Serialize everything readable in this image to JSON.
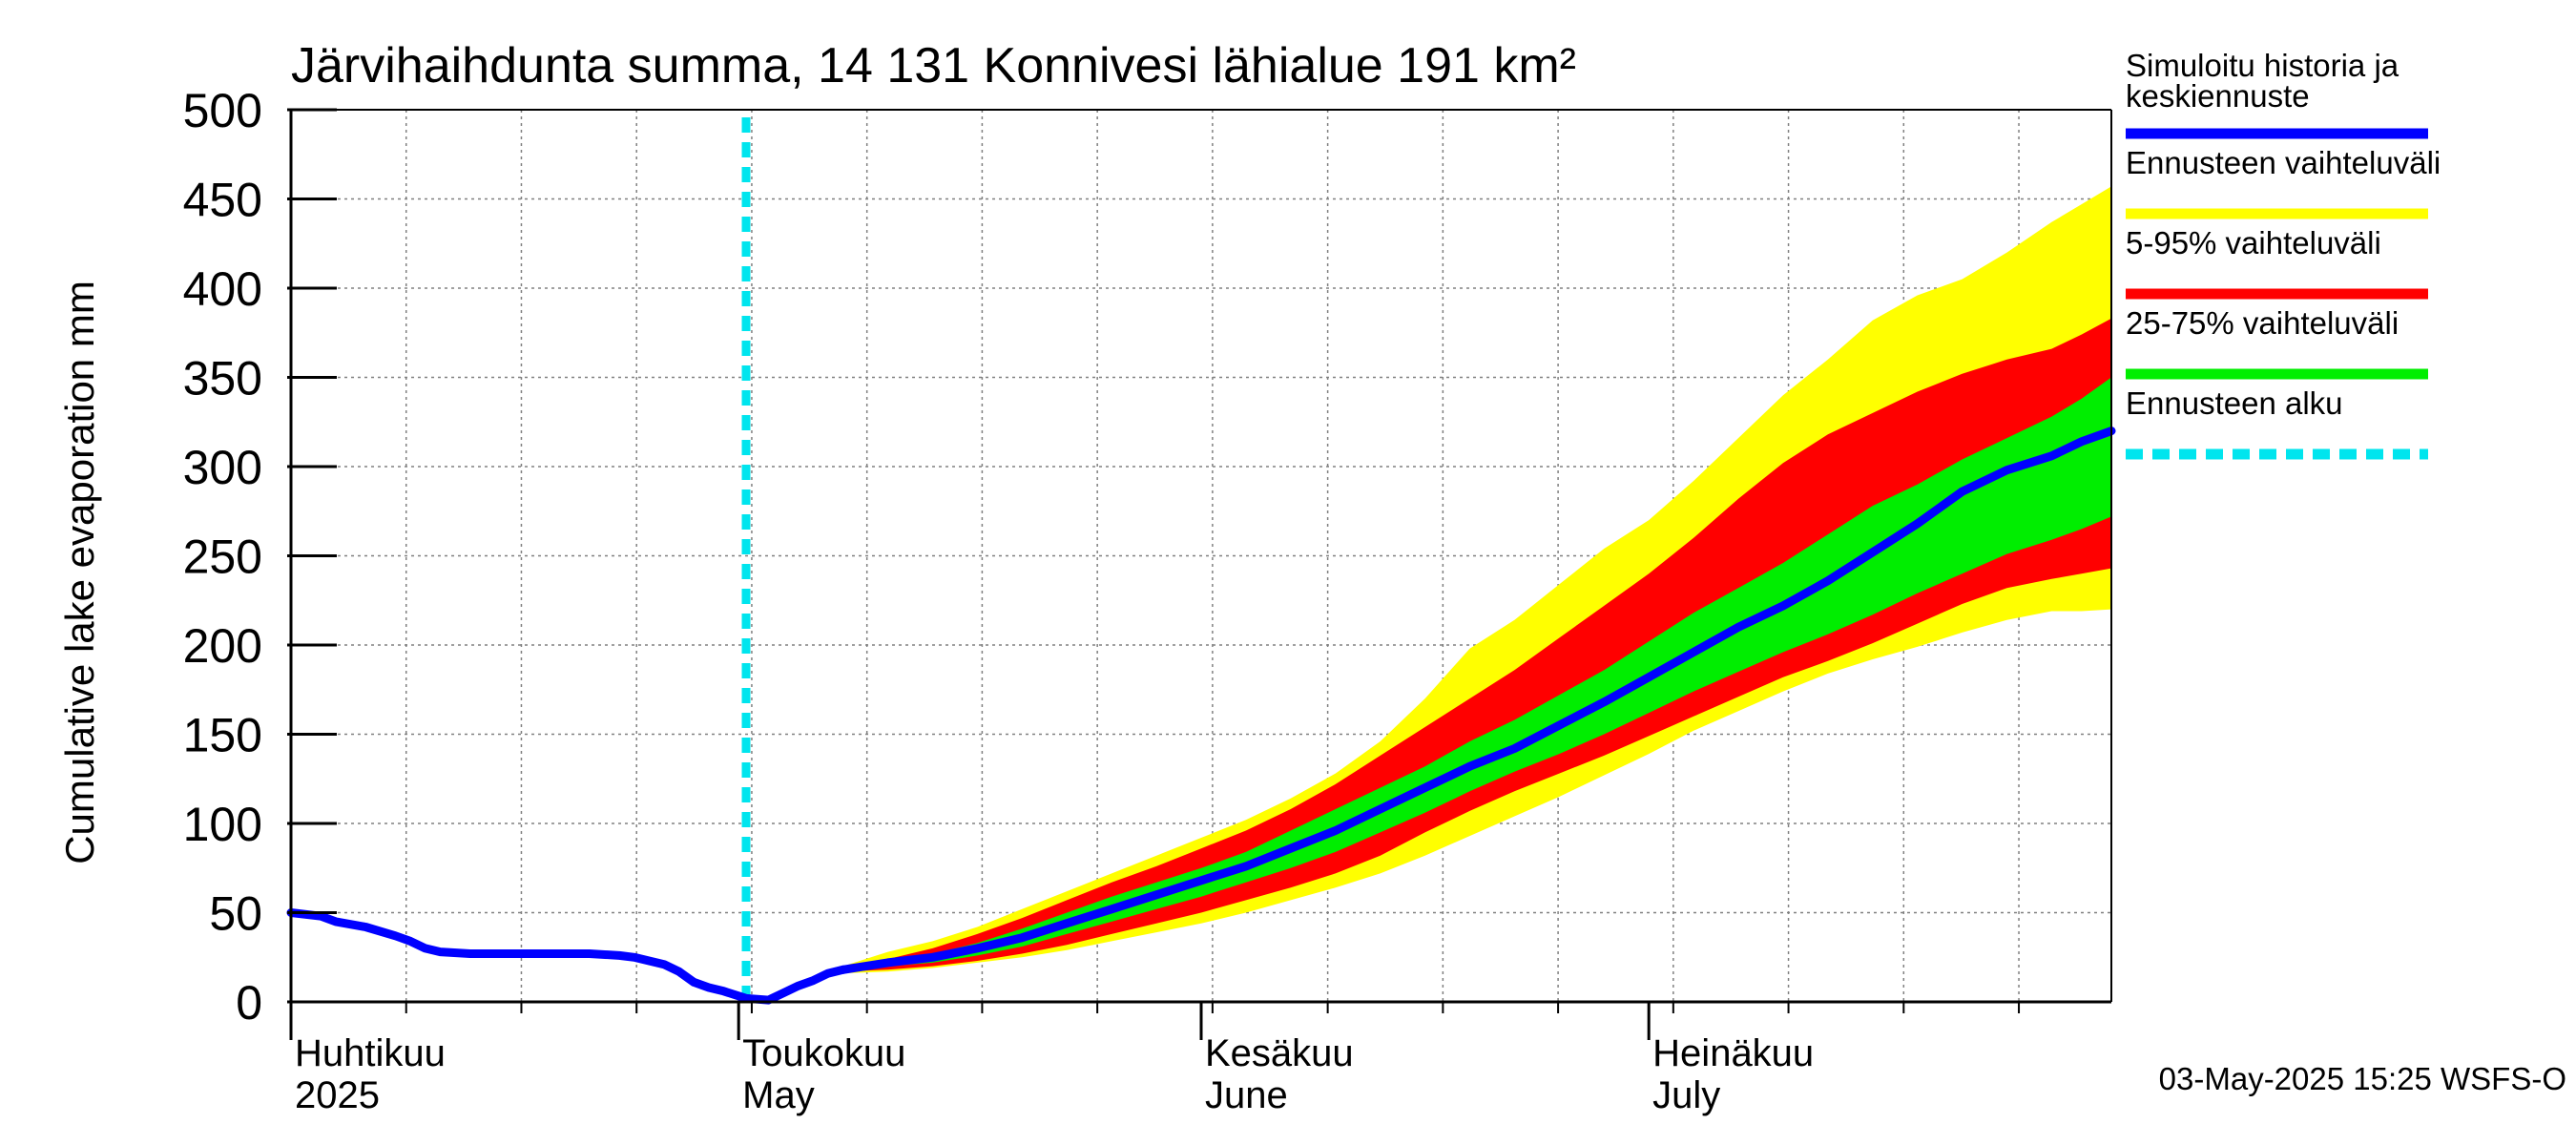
{
  "chart_data": {
    "type": "area",
    "title": "Järvihaihdunta summa, 14 131 Konnivesi lähialue 191 km²",
    "ylabel": "Cumulative lake evaporation   mm",
    "xlabel": "",
    "ylim": [
      0,
      500
    ],
    "yticks": [
      "0",
      "50",
      "100",
      "150",
      "200",
      "250",
      "300",
      "350",
      "400",
      "450",
      "500"
    ],
    "xlim_days": [
      0,
      122
    ],
    "month_labels": [
      {
        "fi": "Huhtikuu",
        "en": "2025",
        "day": 0
      },
      {
        "fi": "Toukokuu",
        "en": "May",
        "day": 30
      },
      {
        "fi": "Kesäkuu",
        "en": "June",
        "day": 61
      },
      {
        "fi": "Heinäkuu",
        "en": "July",
        "day": 91
      }
    ],
    "forecast_start_day": 30.5,
    "history": {
      "name": "Simuloitu historia ja keskiennuste",
      "x": [
        0,
        2,
        3,
        5,
        7,
        8,
        9,
        10,
        12,
        14,
        16,
        18,
        20,
        22,
        23,
        24,
        25,
        26,
        27,
        28,
        29,
        30.5,
        32,
        33,
        34,
        35,
        36,
        37
      ],
      "y": [
        50,
        48,
        45,
        42,
        37,
        34,
        30,
        28,
        27,
        27,
        27,
        27,
        27,
        26,
        25,
        23,
        21,
        17,
        11,
        8,
        6,
        2,
        1,
        5,
        9,
        12,
        16,
        18
      ]
    },
    "forecast_x": [
      37,
      40,
      43,
      46,
      49,
      52,
      55,
      58,
      61,
      64,
      67,
      70,
      73,
      76,
      79,
      82,
      85,
      88,
      91,
      94,
      97,
      100,
      103,
      106,
      109,
      112,
      115,
      118,
      120,
      122
    ],
    "median": [
      18,
      22,
      25,
      30,
      36,
      44,
      52,
      60,
      68,
      76,
      86,
      96,
      108,
      120,
      132,
      142,
      155,
      168,
      182,
      196,
      210,
      222,
      236,
      252,
      268,
      286,
      298,
      306,
      314,
      320
    ],
    "bands": [
      {
        "name": "Ennusteen vaihteluväli",
        "color": "#ffff00",
        "lower": [
          16,
          17,
          19,
          22,
          25,
          29,
          34,
          39,
          44,
          50,
          57,
          64,
          72,
          82,
          93,
          104,
          115,
          127,
          139,
          152,
          163,
          174,
          184,
          192,
          199,
          207,
          214,
          219,
          219,
          220
        ],
        "upper": [
          20,
          28,
          34,
          42,
          52,
          62,
          72,
          82,
          92,
          102,
          114,
          128,
          146,
          170,
          198,
          214,
          234,
          254,
          270,
          292,
          316,
          340,
          360,
          382,
          396,
          405,
          420,
          437,
          447,
          457
        ]
      },
      {
        "name": "5-95% vaihteluväli",
        "color": "#ff0000",
        "lower": [
          17,
          18,
          20,
          23,
          27,
          32,
          38,
          44,
          50,
          57,
          64,
          72,
          82,
          95,
          107,
          118,
          128,
          138,
          149,
          160,
          171,
          182,
          191,
          201,
          212,
          223,
          232,
          237,
          240,
          243
        ],
        "upper": [
          19,
          24,
          30,
          38,
          47,
          57,
          67,
          76,
          86,
          96,
          108,
          122,
          138,
          154,
          170,
          186,
          204,
          222,
          240,
          260,
          282,
          302,
          318,
          330,
          342,
          352,
          360,
          366,
          374,
          383
        ]
      },
      {
        "name": "25-75% vaihteluväli",
        "color": "#00ee00",
        "lower": [
          17,
          20,
          22,
          26,
          31,
          38,
          45,
          52,
          59,
          67,
          75,
          84,
          95,
          106,
          118,
          129,
          139,
          150,
          162,
          174,
          185,
          196,
          206,
          217,
          229,
          240,
          251,
          259,
          265,
          272
        ],
        "upper": [
          18,
          23,
          27,
          33,
          41,
          50,
          59,
          67,
          75,
          84,
          96,
          108,
          120,
          132,
          146,
          158,
          172,
          186,
          202,
          218,
          232,
          246,
          262,
          278,
          290,
          304,
          316,
          328,
          338,
          350
        ]
      }
    ]
  },
  "legend": [
    {
      "name": "Simuloitu historia ja keskiennuste",
      "line1": "Simuloitu historia ja",
      "line2": "keskiennuste",
      "color": "#0000ff",
      "style": "solid"
    },
    {
      "name": "Ennusteen vaihteluväli",
      "line1": "Ennusteen vaihteluväli",
      "color": "#ffff00",
      "style": "solid"
    },
    {
      "name": "5-95% vaihteluväli",
      "line1": "5-95% vaihteluväli",
      "color": "#ff0000",
      "style": "solid"
    },
    {
      "name": "25-75% vaihteluväli",
      "line1": "25-75% vaihteluväli",
      "color": "#00ee00",
      "style": "solid"
    },
    {
      "name": "Ennusteen alku",
      "line1": "Ennusteen alku",
      "color": "#00e5ee",
      "style": "dashed"
    }
  ],
  "footer": "03-May-2025 15:25 WSFS-O",
  "colors": {
    "grid": "#808080",
    "axis": "#000000",
    "median": "#0000ff",
    "forecast_start": "#00e5ee"
  }
}
